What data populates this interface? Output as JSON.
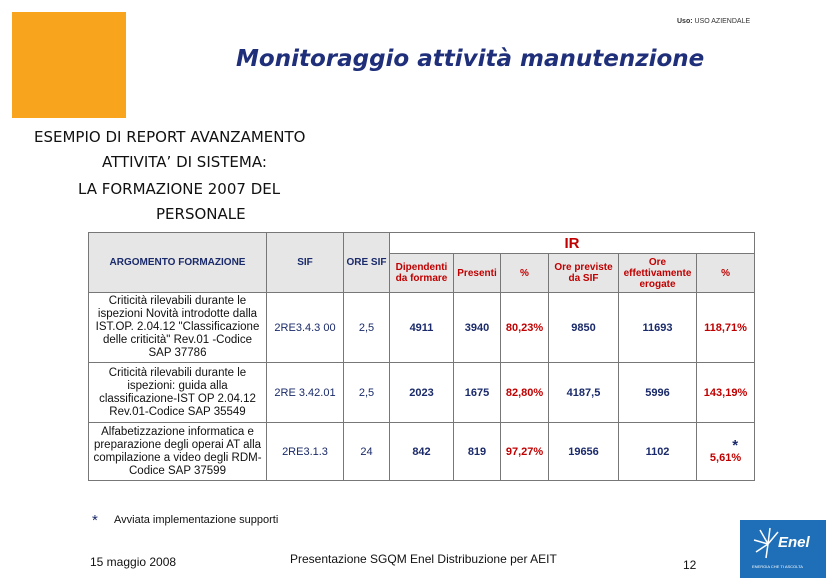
{
  "header": {
    "usage_label": "Uso:",
    "usage_value": "USO AZIENDALE",
    "title": "Monitoraggio attività manutenzione"
  },
  "intro": {
    "line1": "ESEMPIO DI REPORT AVANZAMENTO",
    "line2": "ATTIVITA’ DI SISTEMA:",
    "line3": "LA FORMAZIONE 2007 DEL",
    "line4": "PERSONALE"
  },
  "table": {
    "group_header": "IR",
    "columns": [
      "ARGOMENTO FORMAZIONE",
      "SIF",
      "ORE SIF",
      "Dipendenti da formare",
      "Presenti",
      "%",
      "Ore previste da SIF",
      "Ore effettivamente erogate",
      "%"
    ],
    "rows": [
      [
        "Criticità rilevabili durante le ispezioni Novità introdotte dalla IST.OP. 2.04.12 \"Classificazione delle criticità\" Rev.01 -Codice SAP 37786",
        "2RE3.4.3 00",
        "2,5",
        "4911",
        "3940",
        "80,23%",
        "9850",
        "11693",
        "118,71%"
      ],
      [
        "Criticità rilevabili durante le ispezioni: guida alla classificazione-IST OP 2.04.12 Rev.01-Codice SAP 35549",
        "2RE 3.42.01",
        "2,5",
        "2023",
        "1675",
        "82,80%",
        "4187,5",
        "5996",
        "143,19%"
      ],
      [
        "Alfabetizzazione informatica e preparazione degli operai AT alla compilazione a video degli RDM-Codice SAP 37599",
        "2RE3.1.3",
        "24",
        "842",
        "819",
        "97,27%",
        "19656",
        "1102",
        "5,61%"
      ]
    ],
    "note_mark": "*"
  },
  "footnote": {
    "mark": "*",
    "text": "Avviata implementazione supporti"
  },
  "footer": {
    "date": "15 maggio 2008",
    "presentation": "Presentazione SGQM Enel Distribuzione per AEIT",
    "page": "12",
    "logo": "Enel",
    "logo_sub": "ENERGIA CHE TI ASCOLTA"
  }
}
